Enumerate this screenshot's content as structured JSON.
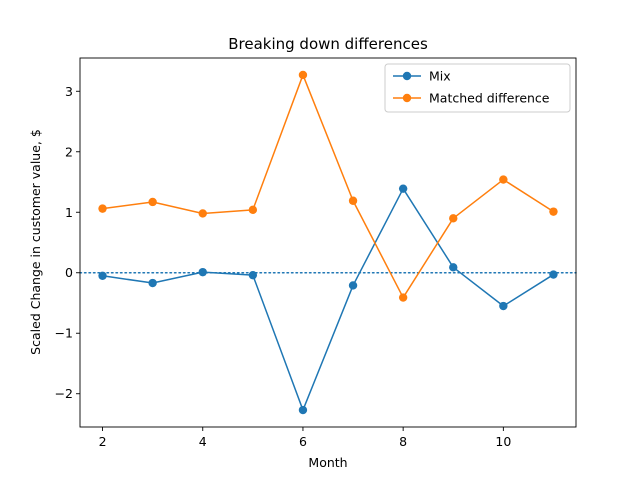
{
  "chart_data": {
    "type": "line",
    "title": "Breaking down differences",
    "xlabel": "Month",
    "ylabel": "Scaled Change in customer value, $",
    "x": [
      2,
      3,
      4,
      5,
      6,
      7,
      8,
      9,
      10,
      11
    ],
    "xlim": [
      1.55,
      11.45
    ],
    "ylim": [
      -2.55,
      3.55
    ],
    "xticks": [
      2,
      4,
      6,
      8,
      10
    ],
    "yticks": [
      -2,
      -1,
      0,
      1,
      2,
      3
    ],
    "ytick_labels": [
      "−2",
      "−1",
      "0",
      "1",
      "2",
      "3"
    ],
    "grid": false,
    "legend_position": "top-right",
    "reference_line": {
      "y": 0,
      "style": "dotted",
      "color": "#1f77b4"
    },
    "series": [
      {
        "name": "Mix",
        "color": "#1f77b4",
        "values": [
          -0.05,
          -0.17,
          0.01,
          -0.04,
          -2.27,
          -0.21,
          1.39,
          0.09,
          -0.55,
          -0.03
        ]
      },
      {
        "name": "Matched difference",
        "color": "#ff7f0e",
        "values": [
          1.06,
          1.17,
          0.98,
          1.04,
          3.27,
          1.19,
          -0.41,
          0.9,
          1.54,
          1.01
        ]
      }
    ]
  }
}
